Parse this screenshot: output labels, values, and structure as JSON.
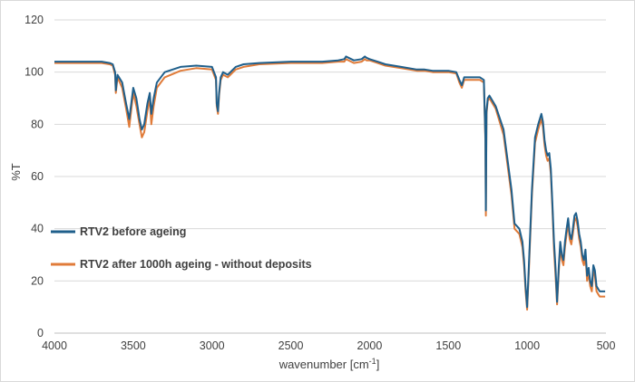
{
  "chart_data": {
    "type": "line",
    "title": "",
    "xlabel": "wavenumber [cm",
    "xlabel_sup": "-1",
    "xlabel_end": "]",
    "ylabel": "%T",
    "xlim": [
      4000,
      500
    ],
    "ylim": [
      0,
      120
    ],
    "x_ticks": [
      4000,
      3500,
      3000,
      2500,
      2000,
      1500,
      1000,
      500
    ],
    "y_ticks": [
      0,
      20,
      40,
      60,
      80,
      100,
      120
    ],
    "grid": "horizontal",
    "legend_position": "left-lower",
    "series": [
      {
        "name": "RTV2 before ageing",
        "color": "#1f5f8b",
        "x": [
          4000,
          3700,
          3650,
          3630,
          3615,
          3610,
          3600,
          3570,
          3545,
          3525,
          3500,
          3480,
          3460,
          3445,
          3430,
          3410,
          3395,
          3385,
          3370,
          3350,
          3300,
          3200,
          3100,
          3000,
          2975,
          2970,
          2962,
          2955,
          2945,
          2930,
          2900,
          2850,
          2800,
          2700,
          2500,
          2300,
          2200,
          2160,
          2150,
          2100,
          2050,
          2030,
          2020,
          2000,
          1950,
          1900,
          1800,
          1700,
          1650,
          1600,
          1500,
          1450,
          1430,
          1415,
          1400,
          1380,
          1300,
          1275,
          1265,
          1262,
          1258,
          1250,
          1240,
          1200,
          1150,
          1100,
          1080,
          1050,
          1030,
          1020,
          1010,
          1000,
          990,
          970,
          950,
          930,
          910,
          900,
          890,
          880,
          870,
          860,
          850,
          840,
          830,
          820,
          810,
          800,
          790,
          780,
          770,
          760,
          750,
          740,
          730,
          720,
          710,
          700,
          690,
          680,
          670,
          660,
          650,
          640,
          630,
          620,
          610,
          600,
          590,
          580,
          570,
          560,
          550,
          540,
          530,
          520,
          510,
          505
        ],
        "y": [
          104,
          104,
          103.5,
          103,
          100,
          93,
          99,
          96,
          88,
          82,
          94,
          90,
          82,
          78,
          80,
          88,
          92,
          84,
          90,
          96,
          100,
          102,
          102.5,
          102,
          98,
          88,
          85,
          92,
          98,
          100,
          99,
          102,
          103,
          103.5,
          104,
          104,
          104.5,
          105,
          106,
          104.5,
          105,
          106,
          105.5,
          105,
          104,
          103,
          102,
          101,
          101,
          100.5,
          100.5,
          100,
          97,
          95,
          98,
          98,
          98,
          97,
          75,
          47,
          85,
          90,
          91,
          87,
          78,
          55,
          42,
          40,
          35,
          28,
          18,
          10,
          25,
          55,
          75,
          80,
          84,
          81,
          74,
          70,
          68,
          69,
          63,
          50,
          35,
          25,
          12,
          25,
          35,
          30,
          28,
          35,
          40,
          44,
          38,
          36,
          40,
          45,
          46,
          43,
          38,
          35,
          30,
          28,
          32,
          22,
          25,
          20,
          18,
          26,
          24,
          18,
          17,
          16,
          16,
          16,
          16,
          16
        ]
      },
      {
        "name": "RTV2 after 1000h ageing - without deposits",
        "color": "#e07b39",
        "x": [
          4000,
          3700,
          3650,
          3630,
          3615,
          3610,
          3600,
          3570,
          3545,
          3525,
          3500,
          3480,
          3460,
          3445,
          3430,
          3410,
          3395,
          3385,
          3370,
          3350,
          3300,
          3200,
          3100,
          3000,
          2975,
          2970,
          2962,
          2955,
          2945,
          2930,
          2900,
          2850,
          2800,
          2700,
          2500,
          2300,
          2200,
          2160,
          2150,
          2100,
          2050,
          2030,
          2020,
          2000,
          1950,
          1900,
          1800,
          1700,
          1650,
          1600,
          1500,
          1450,
          1430,
          1415,
          1400,
          1380,
          1300,
          1275,
          1265,
          1262,
          1258,
          1250,
          1240,
          1200,
          1150,
          1100,
          1080,
          1050,
          1030,
          1020,
          1010,
          1000,
          990,
          970,
          950,
          930,
          910,
          900,
          890,
          880,
          870,
          860,
          850,
          840,
          830,
          820,
          810,
          800,
          790,
          780,
          770,
          760,
          750,
          740,
          730,
          720,
          710,
          700,
          690,
          680,
          670,
          660,
          650,
          640,
          630,
          620,
          610,
          600,
          590,
          580,
          570,
          560,
          550,
          540,
          530,
          520,
          510,
          505
        ],
        "y": [
          103.5,
          103.5,
          103,
          102.5,
          99,
          92,
          98,
          94,
          86,
          79,
          92,
          87,
          80,
          75,
          77,
          85,
          90,
          80,
          87,
          94,
          98,
          100.5,
          101.5,
          101,
          97,
          87,
          84,
          91,
          97,
          99,
          98,
          101,
          102,
          103,
          103.5,
          103.5,
          104,
          104,
          105,
          103.5,
          104,
          105,
          104.5,
          104.5,
          103.5,
          102.5,
          101.5,
          100.5,
          100.5,
          100,
          100,
          99.5,
          96,
          94,
          97,
          97,
          97,
          96,
          73,
          45,
          84,
          89,
          90,
          86,
          76,
          53,
          40,
          38,
          33,
          26,
          16,
          9,
          23,
          53,
          73,
          78,
          82,
          79,
          72,
          68,
          66,
          67,
          61,
          48,
          32,
          22,
          11,
          23,
          33,
          28,
          26,
          33,
          38,
          42,
          36,
          34,
          38,
          43,
          44,
          41,
          36,
          33,
          28,
          26,
          30,
          20,
          23,
          18,
          16,
          24,
          22,
          16,
          15,
          14,
          14,
          14,
          14,
          14
        ]
      }
    ]
  }
}
